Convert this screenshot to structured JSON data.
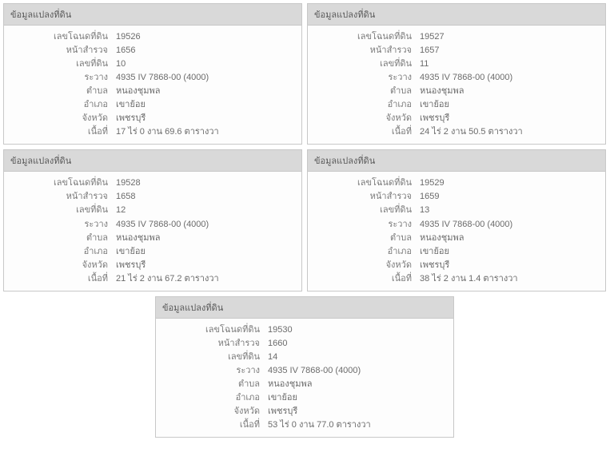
{
  "header_title": "ข้อมูลแปลงที่ดิน",
  "field_labels": {
    "deed_no": "เลขโฉนดที่ดิน",
    "survey_page": "หน้าสำรวจ",
    "land_no": "เลขที่ดิน",
    "rawang": "ระวาง",
    "tambon": "ตำบล",
    "amphoe": "อำเภอ",
    "changwat": "จังหวัด",
    "area": "เนื้อที่"
  },
  "cards": [
    {
      "deed_no": "19526",
      "survey_page": "1656",
      "land_no": "10",
      "rawang": "4935 IV 7868-00 (4000)",
      "tambon": "หนองชุมพล",
      "amphoe": "เขาย้อย",
      "changwat": "เพชรบุรี",
      "area": "17 ไร่ 0 งาน 69.6 ตารางวา"
    },
    {
      "deed_no": "19527",
      "survey_page": "1657",
      "land_no": "11",
      "rawang": "4935 IV 7868-00 (4000)",
      "tambon": "หนองชุมพล",
      "amphoe": "เขาย้อย",
      "changwat": "เพชรบุรี",
      "area": "24 ไร่ 2 งาน 50.5 ตารางวา"
    },
    {
      "deed_no": "19528",
      "survey_page": "1658",
      "land_no": "12",
      "rawang": "4935 IV 7868-00 (4000)",
      "tambon": "หนองชุมพล",
      "amphoe": "เขาย้อย",
      "changwat": "เพชรบุรี",
      "area": "21 ไร่ 2 งาน 67.2 ตารางวา"
    },
    {
      "deed_no": "19529",
      "survey_page": "1659",
      "land_no": "13",
      "rawang": "4935 IV 7868-00 (4000)",
      "tambon": "หนองชุมพล",
      "amphoe": "เขาย้อย",
      "changwat": "เพชรบุรี",
      "area": "38 ไร่ 2 งาน 1.4 ตารางวา"
    },
    {
      "deed_no": "19530",
      "survey_page": "1660",
      "land_no": "14",
      "rawang": "4935 IV 7868-00 (4000)",
      "tambon": "หนองชุมพล",
      "amphoe": "เขาย้อย",
      "changwat": "เพชรบุรี",
      "area": "53 ไร่ 0 งาน 77.0 ตารางวา"
    }
  ]
}
